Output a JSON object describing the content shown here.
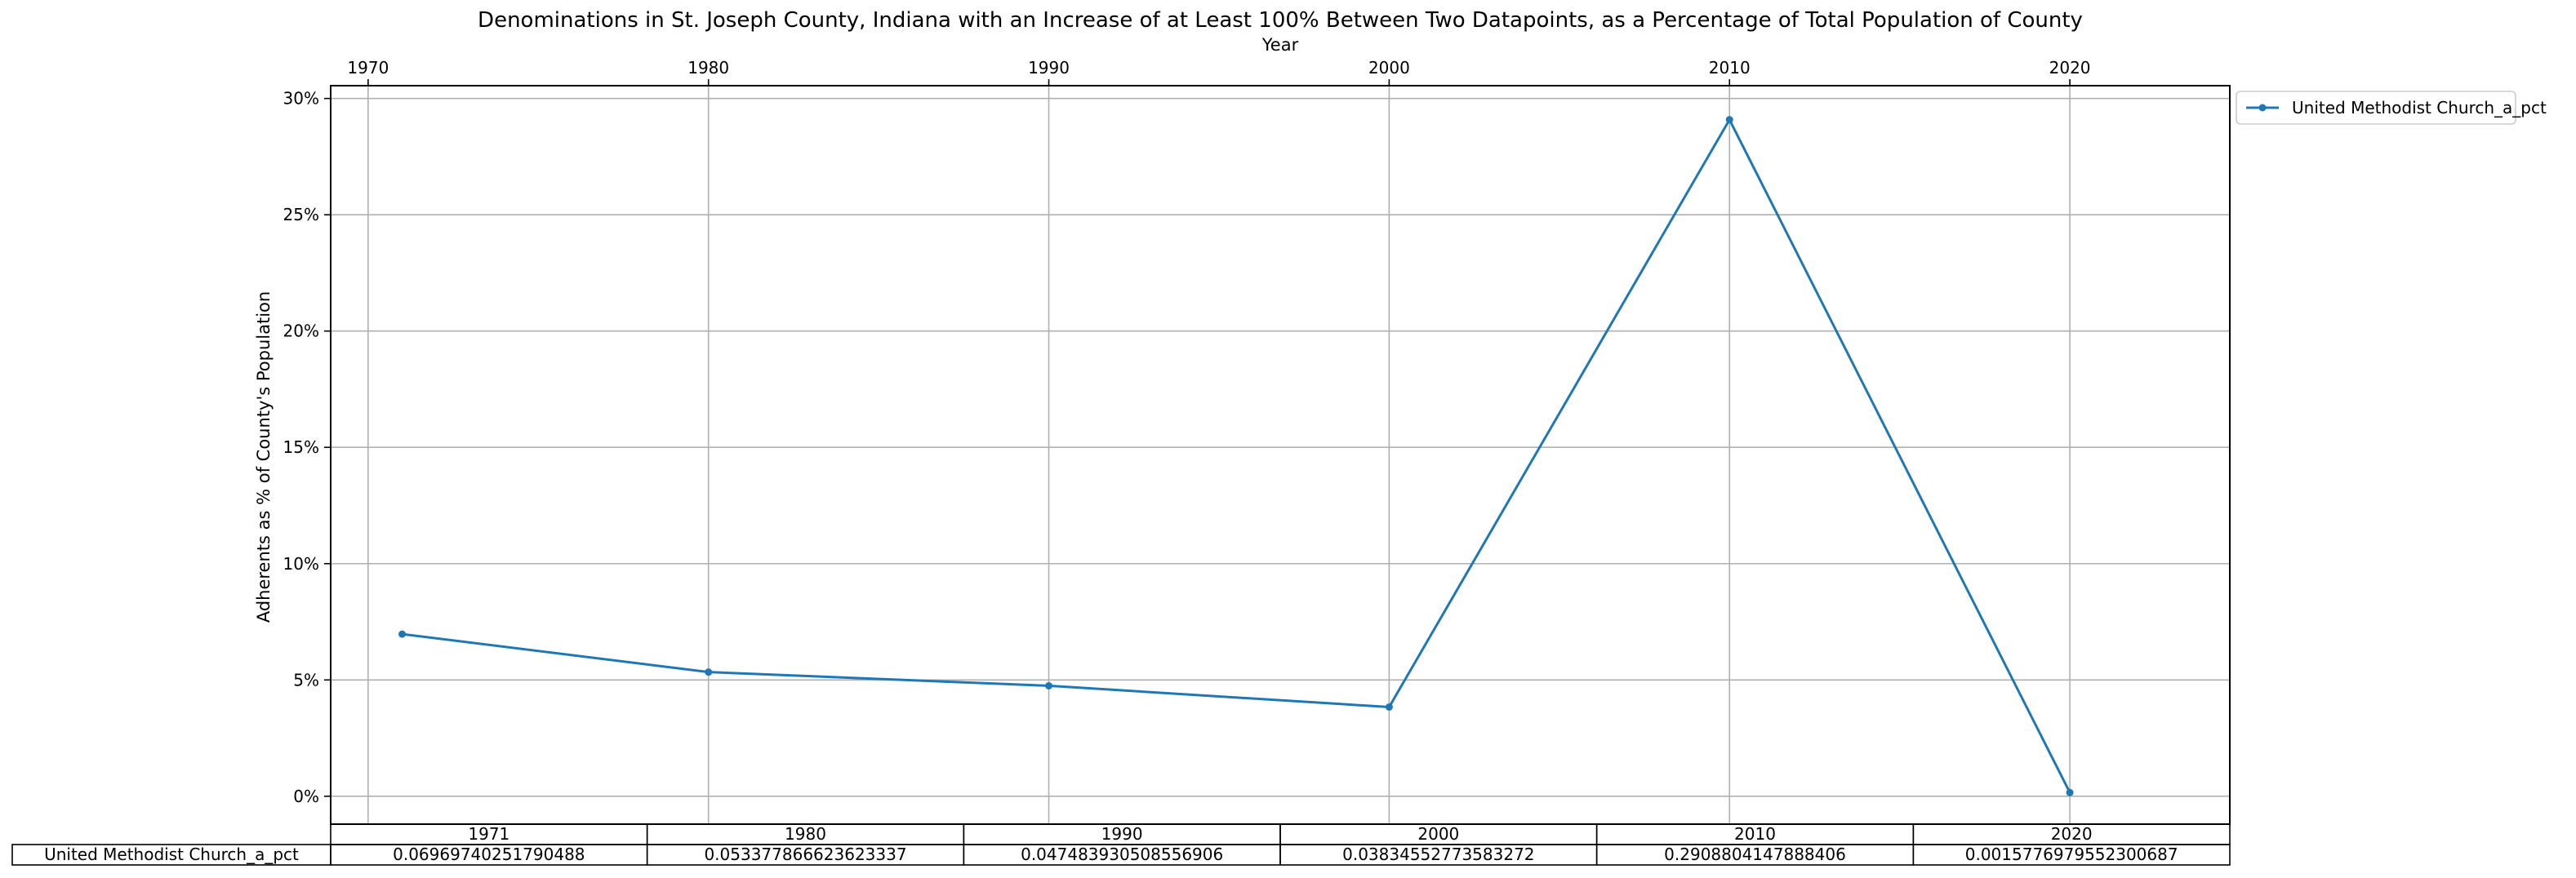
{
  "chart_data": {
    "type": "line",
    "title": "Denominations in St. Joseph County, Indiana with an Increase of at Least 100% Between Two Datapoints, as a Percentage of Total Population of County",
    "xlabel": "Year",
    "ylabel": "Adherents as % of County's Population",
    "x_ticks": [
      "1970",
      "1980",
      "1990",
      "2000",
      "2010",
      "2020"
    ],
    "y_ticks": [
      "0%",
      "5%",
      "10%",
      "15%",
      "20%",
      "25%",
      "30%"
    ],
    "x_range": [
      1968.9,
      2024.7
    ],
    "y_range": [
      -0.012,
      0.3055
    ],
    "grid": true,
    "legend_position": "outside-top-right",
    "series": [
      {
        "name": "United Methodist Church_a_pct",
        "color": "#1f77b4",
        "x": [
          1971,
          1980,
          1990,
          2000,
          2010,
          2020
        ],
        "y": [
          0.06969740251790488,
          0.05337786662362334,
          0.04748393050855691,
          0.03834552773583272,
          0.2908804147888406,
          0.0015776979552300687
        ]
      }
    ],
    "table": {
      "columns": [
        "1971",
        "1980",
        "1990",
        "2000",
        "2010",
        "2020"
      ],
      "rows": [
        {
          "label": "United Methodist Church_a_pct",
          "cells": [
            "0.06969740251790488",
            "0.053377866623623337",
            "0.047483930508556906",
            "0.03834552773583272",
            "0.2908804147888406",
            "0.0015776979552300687"
          ]
        }
      ]
    }
  }
}
